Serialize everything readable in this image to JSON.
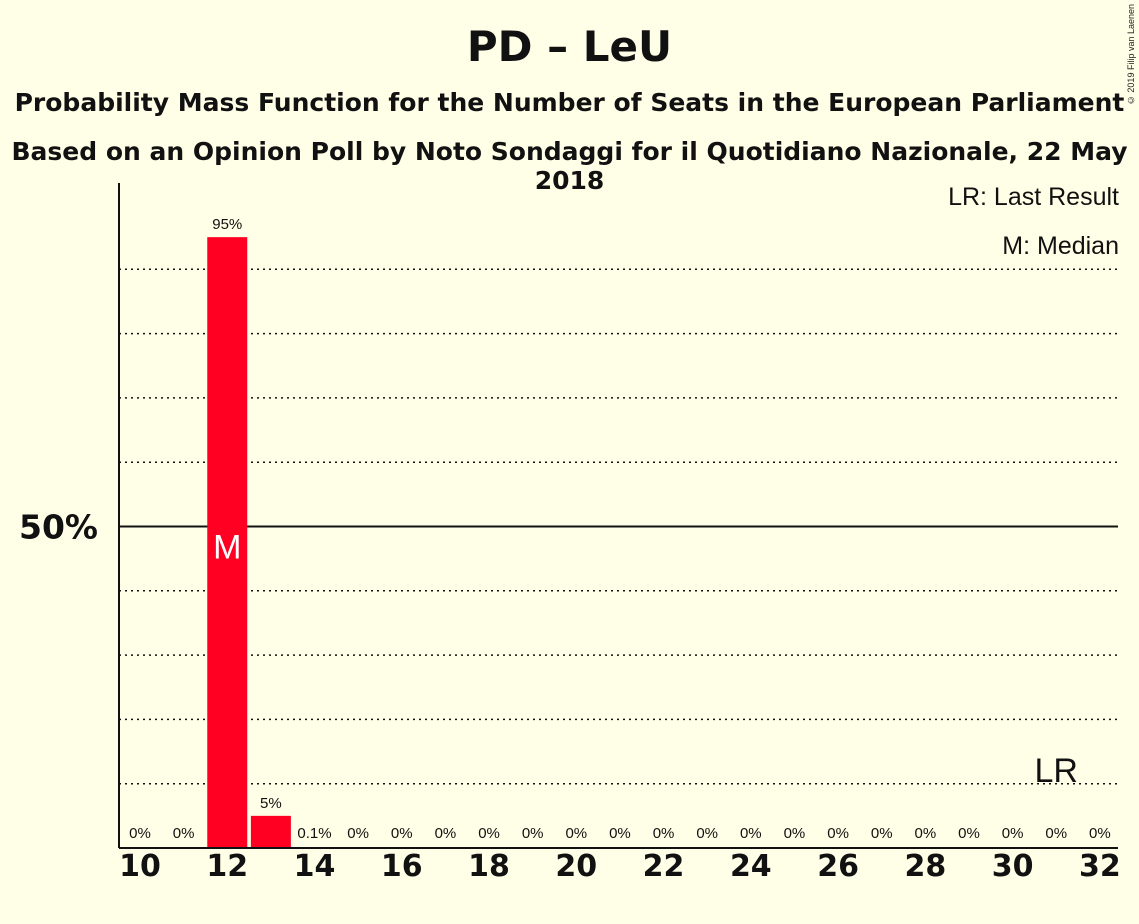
{
  "title": "PD – LeU",
  "subtitle1": "Probability Mass Function for the Number of Seats in the European Parliament",
  "subtitle2": "Based on an Opinion Poll by Noto Sondaggi for il Quotidiano Nazionale, 22 May 2018",
  "copyright": "© 2019 Filip van Laenen",
  "legend": {
    "last_result": "LR: Last Result",
    "median": "M: Median"
  },
  "colors": {
    "bar": "#FF0022",
    "background": "#FFFEE6"
  },
  "chart_data": {
    "type": "bar",
    "x": [
      10,
      11,
      12,
      13,
      14,
      15,
      16,
      17,
      18,
      19,
      20,
      21,
      22,
      23,
      24,
      25,
      26,
      27,
      28,
      29,
      30,
      31,
      32
    ],
    "values": [
      0,
      0,
      95,
      5,
      0.1,
      0,
      0,
      0,
      0,
      0,
      0,
      0,
      0,
      0,
      0,
      0,
      0,
      0,
      0,
      0,
      0,
      0,
      0
    ],
    "labels": [
      "0%",
      "0%",
      "95%",
      "5%",
      "0.1%",
      "0%",
      "0%",
      "0%",
      "0%",
      "0%",
      "0%",
      "0%",
      "0%",
      "0%",
      "0%",
      "0%",
      "0%",
      "0%",
      "0%",
      "0%",
      "0%",
      "0%",
      "0%"
    ],
    "x_tick_labels": [
      "10",
      "12",
      "14",
      "16",
      "18",
      "20",
      "22",
      "24",
      "26",
      "28",
      "30",
      "32"
    ],
    "x_tick_values": [
      10,
      12,
      14,
      16,
      18,
      20,
      22,
      24,
      26,
      28,
      30,
      32
    ],
    "y_tick_label": "50%",
    "y_tick_value": 50,
    "ylim": [
      0,
      100
    ],
    "gridlines": [
      10,
      20,
      30,
      40,
      60,
      70,
      80,
      90
    ],
    "median": 12,
    "median_label": "M",
    "last_result": 31,
    "last_result_label": "LR"
  }
}
